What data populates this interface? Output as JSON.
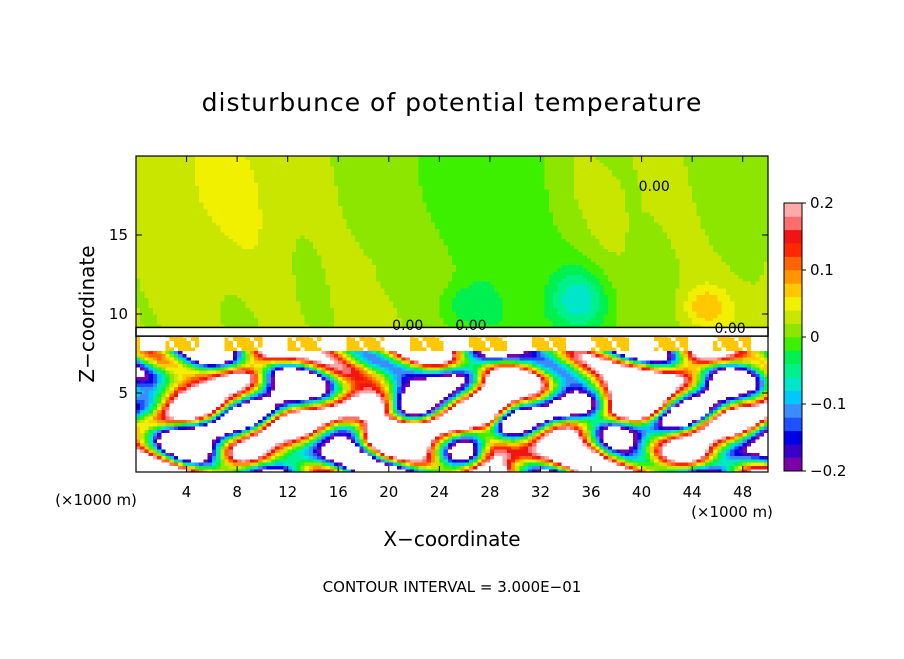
{
  "chart_data": {
    "type": "heatmap",
    "title": "disturbunce of potential temperature",
    "xlabel": "X−coordinate",
    "ylabel": "Z−coordinate",
    "x_unit_left": "(×1000 m)",
    "x_unit_right": "(×1000 m)",
    "xlim": [
      0,
      50
    ],
    "ylim": [
      0,
      20
    ],
    "x_ticks": [
      4,
      8,
      12,
      16,
      20,
      24,
      28,
      32,
      36,
      40,
      44,
      48
    ],
    "x_tick_labels": [
      "4",
      "8",
      "12",
      "16",
      "20",
      "24",
      "28",
      "32",
      "36",
      "40",
      "44",
      "48"
    ],
    "y_ticks": [
      5,
      10,
      15
    ],
    "y_tick_labels": [
      "5",
      "10",
      "15"
    ],
    "colorbar": {
      "min": -0.2,
      "max": 0.2,
      "ticks": [
        0.2,
        0.1,
        0,
        -0.1,
        -0.2
      ],
      "tick_labels": [
        "0.2",
        "0.1",
        "0",
        "−0.1",
        "−0.2"
      ],
      "colors": [
        "#7b00a8",
        "#3a00c8",
        "#0000e6",
        "#1e50ff",
        "#3c8cff",
        "#00c8ff",
        "#00e6c8",
        "#00f08c",
        "#00f050",
        "#3cf000",
        "#8ce600",
        "#c8e600",
        "#f0f000",
        "#ffc800",
        "#ff9600",
        "#ff6400",
        "#ff2800",
        "#f01414",
        "#ff6e6e",
        "#ffaaaa"
      ]
    },
    "contour_labels": [
      {
        "text": "0.00",
        "x": 41,
        "z": 17.8
      },
      {
        "text": "0.00",
        "x": 21.5,
        "z": 9.0
      },
      {
        "text": "0.00",
        "x": 26.5,
        "z": 9.0
      },
      {
        "text": "0.00",
        "x": 47,
        "z": 8.8
      }
    ],
    "layer_boundary_z": 9.0,
    "footer": "CONTOUR INTERVAL = 3.000E−01"
  }
}
